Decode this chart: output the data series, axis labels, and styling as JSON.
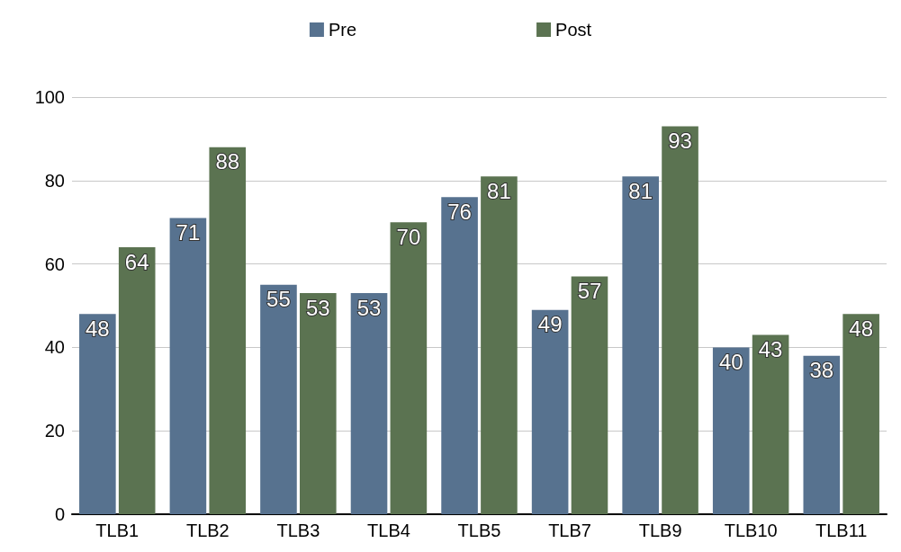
{
  "chart_data": {
    "type": "bar",
    "categories": [
      "TLB1",
      "TLB2",
      "TLB3",
      "TLB4",
      "TLB5",
      "TLB7",
      "TLB9",
      "TLB10",
      "TLB11"
    ],
    "series": [
      {
        "name": "Pre",
        "color": "#57728f",
        "values": [
          48,
          71,
          55,
          53,
          76,
          49,
          81,
          40,
          38
        ]
      },
      {
        "name": "Post",
        "color": "#5b7351",
        "values": [
          64,
          88,
          53,
          70,
          81,
          57,
          93,
          43,
          48
        ]
      }
    ],
    "ylim": [
      0,
      100
    ],
    "yticks": [
      0,
      20,
      40,
      60,
      80,
      100
    ],
    "grid": "y",
    "legend": "top",
    "data_labels": true
  }
}
